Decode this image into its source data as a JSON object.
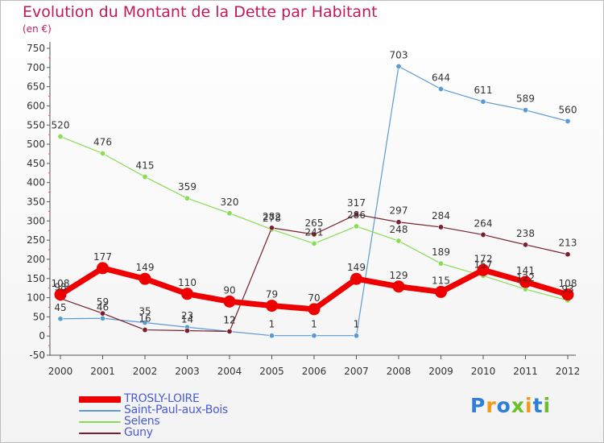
{
  "title": "Evolution du Montant de la Dette par Habitant",
  "subtitle": "(en €)",
  "logo": {
    "text": "Proxiti",
    "letters": [
      {
        "ch": "P",
        "color": "#2f7fd8"
      },
      {
        "ch": "r",
        "color": "#f29a1a"
      },
      {
        "ch": "o",
        "color": "#2f7fd8"
      },
      {
        "ch": "x",
        "color": "#6bbf2a"
      },
      {
        "ch": "i",
        "color": "#f29a1a"
      },
      {
        "ch": "t",
        "color": "#2f7fd8"
      },
      {
        "ch": "i",
        "color": "#6bbf2a"
      }
    ]
  },
  "chart_data": {
    "type": "line",
    "x": [
      "2000",
      "2001",
      "2002",
      "2003",
      "2004",
      "2005",
      "2006",
      "2007",
      "2008",
      "2009",
      "2010",
      "2011",
      "2012"
    ],
    "ylim": [
      -50,
      750
    ],
    "ytick_step": 50,
    "grid": false,
    "legend_position": "bottom-left",
    "series": [
      {
        "name": "TROSLY-LOIRE",
        "color": "#ee0000",
        "style": "thick",
        "values": [
          108,
          177,
          149,
          110,
          90,
          79,
          70,
          149,
          129,
          115,
          172,
          141,
          108
        ]
      },
      {
        "name": "Saint-Paul-aux-Bois",
        "color": "#5b9bd5",
        "style": "thin",
        "values": [
          45,
          46,
          35,
          23,
          12,
          1,
          1,
          1,
          703,
          644,
          611,
          589,
          560
        ]
      },
      {
        "name": "Selens",
        "color": "#88dd55",
        "style": "thin",
        "values": [
          520,
          476,
          415,
          359,
          320,
          278,
          241,
          286,
          248,
          189,
          157,
          122,
          93
        ]
      },
      {
        "name": "Guny",
        "color": "#7a1f2e",
        "style": "thin",
        "values": [
          98,
          59,
          16,
          14,
          12,
          282,
          265,
          317,
          297,
          284,
          264,
          238,
          213
        ]
      }
    ]
  }
}
